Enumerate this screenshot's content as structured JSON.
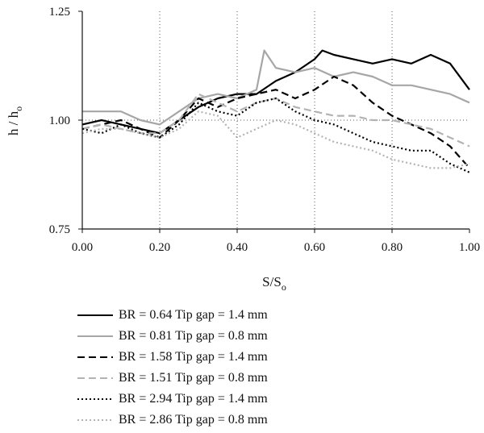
{
  "chart_data": {
    "type": "line",
    "title": "",
    "ylabel": "h / h",
    "ylabel_sub": "o",
    "xlabel": "S/S",
    "xlabel_sub": "o",
    "xlim": [
      0,
      1
    ],
    "ylim": [
      0.75,
      1.25
    ],
    "xticks": [
      "0.00",
      "0.20",
      "0.40",
      "0.60",
      "0.80",
      "1.00"
    ],
    "yticks": [
      "0.75",
      "1.00",
      "1.25"
    ],
    "vertical_grid": "dotted at x ticks",
    "reference_line": 1.0,
    "legend_position": "bottom",
    "series": [
      {
        "name": "BR = 0.64 Tip gap = 1.4 mm",
        "color": "#000000",
        "dash": "solid",
        "x": [
          0,
          0.05,
          0.1,
          0.15,
          0.2,
          0.25,
          0.3,
          0.35,
          0.4,
          0.45,
          0.5,
          0.55,
          0.6,
          0.62,
          0.65,
          0.7,
          0.75,
          0.8,
          0.85,
          0.9,
          0.95,
          1.0
        ],
        "y": [
          0.99,
          1.0,
          0.99,
          0.98,
          0.97,
          1.0,
          1.03,
          1.05,
          1.06,
          1.06,
          1.09,
          1.11,
          1.14,
          1.16,
          1.15,
          1.14,
          1.13,
          1.14,
          1.13,
          1.15,
          1.13,
          1.07
        ]
      },
      {
        "name": "BR = 0.81 Tip gap = 0.8 mm",
        "color": "#a6a6a6",
        "dash": "solid",
        "x": [
          0,
          0.05,
          0.1,
          0.15,
          0.2,
          0.25,
          0.3,
          0.35,
          0.4,
          0.45,
          0.47,
          0.5,
          0.55,
          0.6,
          0.65,
          0.7,
          0.75,
          0.8,
          0.85,
          0.9,
          0.95,
          1.0
        ],
        "y": [
          1.02,
          1.02,
          1.02,
          1.0,
          0.99,
          1.02,
          1.05,
          1.06,
          1.05,
          1.07,
          1.16,
          1.12,
          1.11,
          1.12,
          1.1,
          1.11,
          1.1,
          1.08,
          1.08,
          1.07,
          1.06,
          1.04
        ]
      },
      {
        "name": "BR = 1.58 Tip gap = 1.4 mm",
        "color": "#000000",
        "dash": "9,5",
        "x": [
          0,
          0.05,
          0.1,
          0.15,
          0.2,
          0.25,
          0.3,
          0.35,
          0.4,
          0.45,
          0.5,
          0.55,
          0.6,
          0.65,
          0.7,
          0.75,
          0.8,
          0.85,
          0.9,
          0.95,
          1.0
        ],
        "y": [
          0.98,
          0.99,
          1.0,
          0.98,
          0.96,
          1.0,
          1.05,
          1.03,
          1.05,
          1.06,
          1.07,
          1.05,
          1.07,
          1.1,
          1.08,
          1.04,
          1.01,
          0.99,
          0.97,
          0.94,
          0.89
        ]
      },
      {
        "name": "BR = 1.51 Tip gap = 0.8 mm",
        "color": "#b3b3b3",
        "dash": "9,5",
        "x": [
          0,
          0.05,
          0.1,
          0.15,
          0.2,
          0.25,
          0.3,
          0.35,
          0.4,
          0.45,
          0.5,
          0.55,
          0.6,
          0.65,
          0.7,
          0.75,
          0.8,
          0.85,
          0.9,
          0.95,
          1.0
        ],
        "y": [
          0.98,
          0.99,
          0.98,
          0.97,
          0.97,
          1.0,
          1.06,
          1.04,
          1.02,
          1.04,
          1.05,
          1.03,
          1.02,
          1.01,
          1.01,
          1.0,
          1.0,
          0.99,
          0.98,
          0.96,
          0.94
        ]
      },
      {
        "name": "BR = 2.94 Tip gap = 1.4 mm",
        "color": "#000000",
        "dash": "2,3",
        "x": [
          0,
          0.05,
          0.1,
          0.15,
          0.2,
          0.25,
          0.3,
          0.35,
          0.4,
          0.45,
          0.5,
          0.55,
          0.6,
          0.65,
          0.7,
          0.75,
          0.8,
          0.85,
          0.9,
          0.95,
          1.0
        ],
        "y": [
          0.98,
          0.97,
          0.99,
          0.97,
          0.96,
          0.99,
          1.04,
          1.02,
          1.01,
          1.04,
          1.05,
          1.02,
          1.0,
          0.99,
          0.97,
          0.95,
          0.94,
          0.93,
          0.93,
          0.9,
          0.88
        ]
      },
      {
        "name": "BR = 2.86 Tip gap = 0.8 mm",
        "color": "#b3b3b3",
        "dash": "2,3",
        "x": [
          0,
          0.05,
          0.1,
          0.15,
          0.2,
          0.25,
          0.3,
          0.35,
          0.4,
          0.45,
          0.5,
          0.55,
          0.6,
          0.65,
          0.7,
          0.75,
          0.8,
          0.85,
          0.9,
          0.95,
          1.0
        ],
        "y": [
          0.97,
          0.98,
          0.98,
          0.97,
          0.96,
          0.98,
          1.02,
          1.01,
          0.96,
          0.98,
          1.0,
          0.99,
          0.97,
          0.95,
          0.94,
          0.93,
          0.91,
          0.9,
          0.89,
          0.89,
          0.9
        ]
      }
    ]
  }
}
